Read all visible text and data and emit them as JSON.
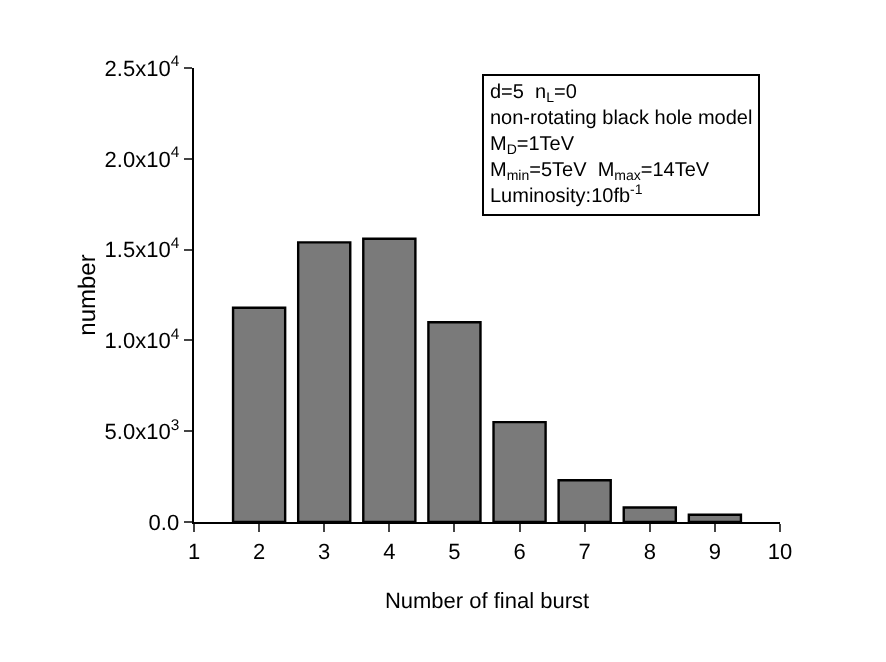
{
  "chart_data": {
    "type": "bar",
    "xlabel": "Number of final burst",
    "ylabel": "number",
    "x": [
      2,
      3,
      4,
      5,
      6,
      7,
      8,
      9
    ],
    "values": [
      11800,
      15400,
      15600,
      11000,
      5500,
      2300,
      800,
      400
    ],
    "color": "#7a7a7a",
    "xlim": [
      1,
      10
    ],
    "xticks": [
      1,
      2,
      3,
      4,
      5,
      6,
      7,
      8,
      9,
      10
    ],
    "ylim": [
      0,
      25000
    ],
    "yticks": [
      {
        "value": 0,
        "label": "0.0"
      },
      {
        "value": 5000,
        "label": "5.0x10$^{3}$"
      },
      {
        "value": 10000,
        "label": "1.0x10$^{4}$"
      },
      {
        "value": 15000,
        "label": "1.5x10$^{4}$"
      },
      {
        "value": 20000,
        "label": "2.0x10$^{4}$"
      },
      {
        "value": 25000,
        "label": "2.5x10$^{4}$"
      }
    ],
    "grid": false,
    "annotations": [
      "d=5  n$_{L}$=0",
      "non-rotating black hole model",
      "M$_{D}$=1TeV",
      "M$_{min}$=5TeV  M$_{max}$=14TeV",
      "Luminosity:10fb$^{-1}$"
    ]
  }
}
